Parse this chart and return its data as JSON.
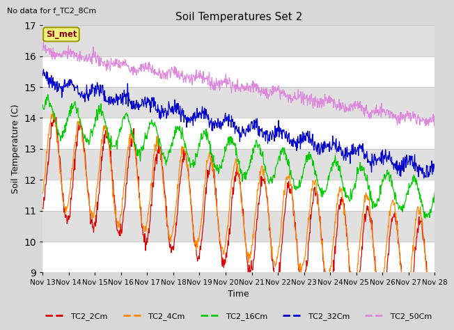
{
  "title": "Soil Temperatures Set 2",
  "no_data_note": "No data for f_TC2_8Cm",
  "si_met_label": "SI_met",
  "xlabel": "Time",
  "ylabel": "Soil Temperature (C)",
  "ylim": [
    9.0,
    17.0
  ],
  "yticks": [
    9.0,
    10.0,
    11.0,
    12.0,
    13.0,
    14.0,
    15.0,
    16.0,
    17.0
  ],
  "x_tick_labels": [
    "Nov 13",
    "Nov 14",
    "Nov 15",
    "Nov 16",
    "Nov 17",
    "Nov 18",
    "Nov 19",
    "Nov 20",
    "Nov 21",
    "Nov 22",
    "Nov 23",
    "Nov 24",
    "Nov 25",
    "Nov 26",
    "Nov 27",
    "Nov 28"
  ],
  "line_colors": [
    "#dd0000",
    "#ff8800",
    "#00cc00",
    "#0000cc",
    "#dd88dd"
  ],
  "line_labels": [
    "TC2_2Cm",
    "TC2_4Cm",
    "TC2_16Cm",
    "TC2_32Cm",
    "TC2_50Cm"
  ],
  "background_color": "#d8d8d8",
  "plot_bg_color": "#d8d8d8",
  "band_color_light": "#ffffff",
  "band_color_dark": "#e8e8e8",
  "si_met_fg": "#8b0000",
  "si_met_bg": "#f5f580",
  "si_met_edge": "#999900"
}
